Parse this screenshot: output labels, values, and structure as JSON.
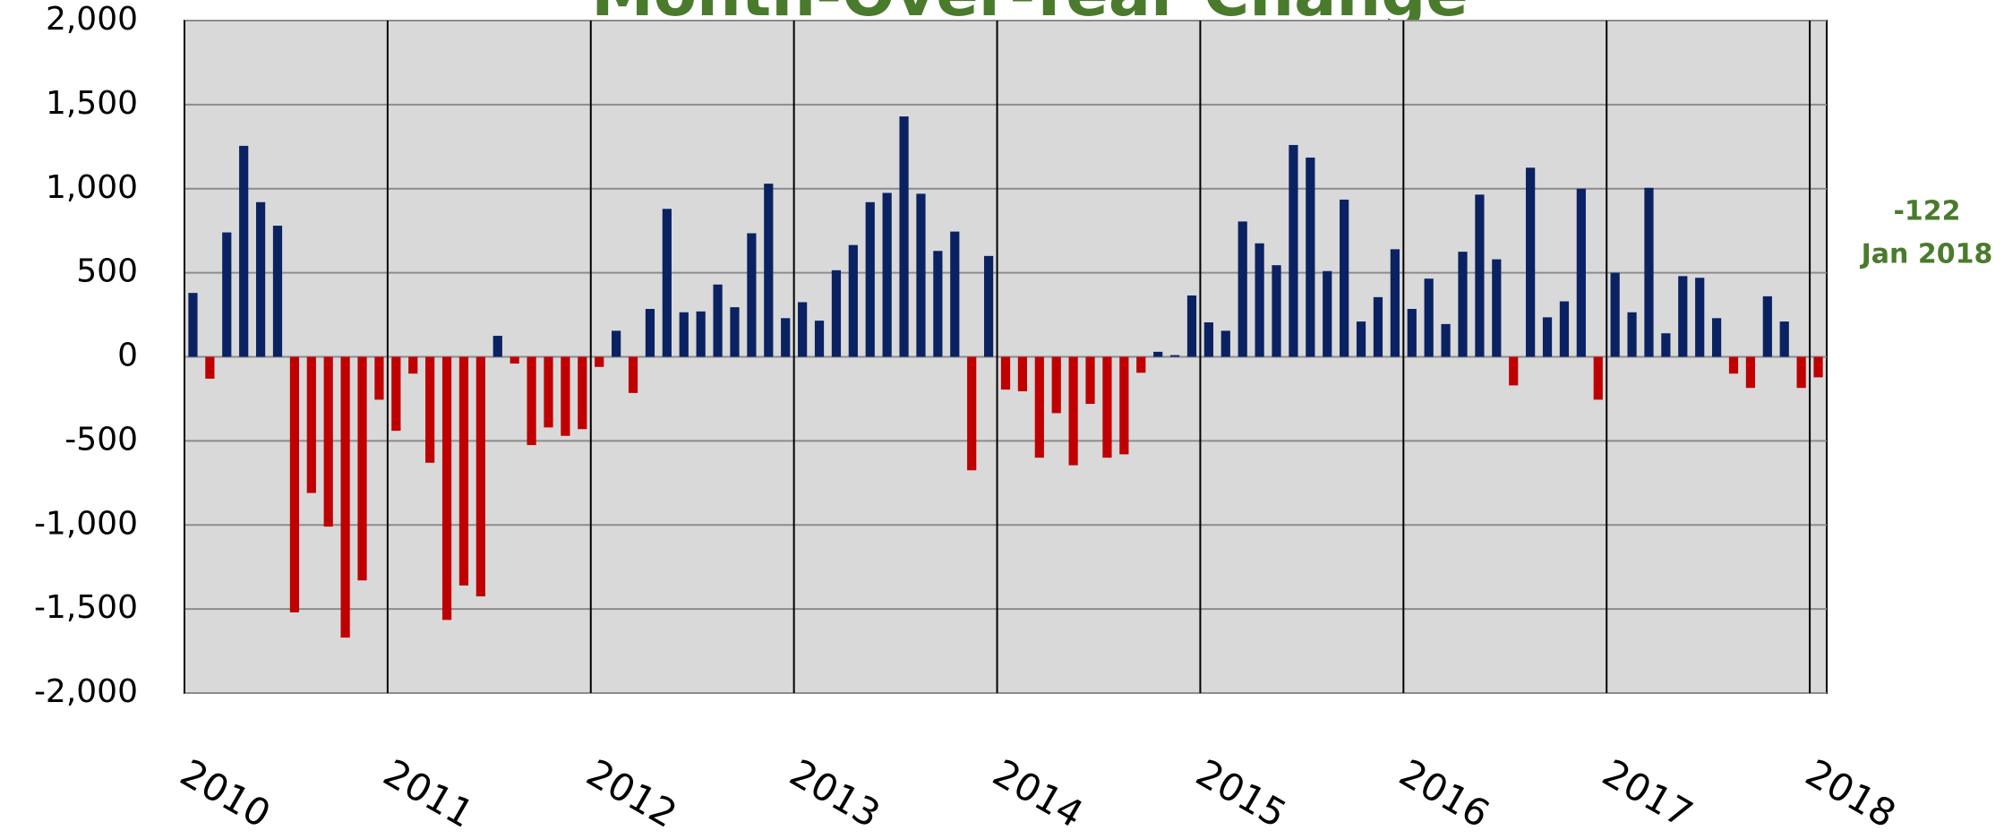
{
  "chart_data": {
    "type": "bar",
    "title": "Month-Over-Year Change",
    "categories": [
      "2010",
      null,
      null,
      null,
      null,
      null,
      null,
      null,
      null,
      null,
      null,
      null,
      "2011",
      null,
      null,
      null,
      null,
      null,
      null,
      null,
      null,
      null,
      null,
      null,
      "2012",
      null,
      null,
      null,
      null,
      null,
      null,
      null,
      null,
      null,
      null,
      null,
      "2013",
      null,
      null,
      null,
      null,
      null,
      null,
      null,
      null,
      null,
      null,
      null,
      "2014",
      null,
      null,
      null,
      null,
      null,
      null,
      null,
      null,
      null,
      null,
      null,
      "2015",
      null,
      null,
      null,
      null,
      null,
      null,
      null,
      null,
      null,
      null,
      null,
      "2016",
      null,
      null,
      null,
      null,
      null,
      null,
      null,
      null,
      null,
      null,
      null,
      "2017",
      null,
      null,
      null,
      null,
      null,
      null,
      null,
      null,
      null,
      null,
      null,
      "2018"
    ],
    "values": [
      380,
      -130,
      740,
      1255,
      920,
      780,
      -1520,
      -810,
      -1010,
      -1670,
      -1330,
      -255,
      -440,
      -100,
      -630,
      -1565,
      -1360,
      -1425,
      125,
      -40,
      -525,
      -420,
      -470,
      -430,
      -60,
      155,
      -215,
      285,
      880,
      265,
      270,
      430,
      295,
      735,
      1030,
      230,
      325,
      215,
      515,
      665,
      920,
      975,
      1430,
      970,
      630,
      745,
      -675,
      600,
      -195,
      -205,
      -600,
      -335,
      -645,
      -280,
      -600,
      -580,
      -95,
      30,
      10,
      365,
      205,
      155,
      805,
      675,
      545,
      1260,
      1185,
      510,
      935,
      210,
      355,
      640,
      285,
      465,
      195,
      625,
      965,
      580,
      -170,
      1125,
      235,
      330,
      1000,
      -255,
      500,
      265,
      1005,
      140,
      480,
      470,
      230,
      -100,
      -185,
      360,
      210,
      -185,
      -122
    ],
    "color": "#0b2262",
    "negative_color": "#c00000",
    "ylim": [
      -2000,
      2000
    ],
    "yticks": [
      {
        "value": -2000,
        "label": "-2,000"
      },
      {
        "value": -1500,
        "label": "-1,500"
      },
      {
        "value": -1000,
        "label": "-1,000"
      },
      -500,
      0,
      500,
      {
        "value": 1000,
        "label": "1,000"
      },
      {
        "value": 1500,
        "label": "1,500"
      },
      {
        "value": 2000,
        "label": "2,000"
      }
    ],
    "grid": true,
    "annotations": [
      "-122",
      "Jan 2018"
    ]
  }
}
